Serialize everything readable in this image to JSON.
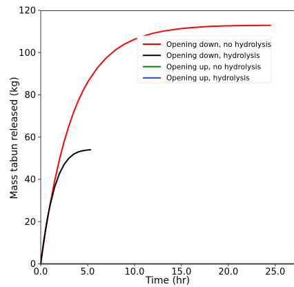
{
  "chart_data": {
    "type": "line",
    "xlabel": "Time (hr)",
    "ylabel": "Mass tabun released (kg)",
    "xlim": [
      0,
      27
    ],
    "ylim": [
      0,
      120
    ],
    "x_ticks": [
      0,
      5,
      10,
      15,
      20,
      25
    ],
    "x_tick_labels": [
      "0.0",
      "5.0",
      "10.0",
      "15.0",
      "20.0",
      "25.0"
    ],
    "y_ticks": [
      0,
      20,
      40,
      60,
      80,
      100,
      120
    ],
    "y_tick_labels": [
      "0",
      "20",
      "40",
      "60",
      "80",
      "100",
      "120"
    ],
    "grid": false,
    "legend_position": "upper-right",
    "series": [
      {
        "name": "Opening down, no hydrolysis",
        "color": "#ff0000",
        "x": [
          0,
          0.5,
          1,
          1.5,
          2,
          2.5,
          3,
          3.5,
          4,
          4.5,
          5,
          6,
          7,
          8,
          9,
          10,
          11,
          12,
          13,
          14,
          15,
          16,
          18,
          20,
          22,
          24,
          24.5
        ],
        "y": [
          0,
          15.2,
          28.3,
          39.6,
          49.5,
          58,
          65.3,
          71.7,
          77.2,
          81.9,
          86,
          92.6,
          97.6,
          101.4,
          104.2,
          106.3,
          107.9,
          109.2,
          110.1,
          110.8,
          111.4,
          111.8,
          112.4,
          112.7,
          112.8,
          112.9,
          112.9
        ]
      },
      {
        "name": "Opening down, hydrolysis",
        "color": "#000000",
        "x": [
          0,
          0.25,
          0.5,
          0.75,
          1,
          1.5,
          2,
          2.5,
          3,
          3.5,
          4,
          4.5,
          5,
          5.3
        ],
        "y": [
          0,
          8.6,
          16,
          22.4,
          27.8,
          36.6,
          42.8,
          47.1,
          50,
          51.9,
          53,
          53.6,
          53.9,
          54
        ]
      },
      {
        "name": "Opening up, no hydrolysis",
        "color": "#008000",
        "x": [
          0,
          27
        ],
        "y": [
          0,
          0
        ]
      },
      {
        "name": "Opening up, hydrolysis",
        "color": "#1f4fd8",
        "x": [
          0,
          27
        ],
        "y": [
          0,
          0
        ]
      }
    ]
  }
}
